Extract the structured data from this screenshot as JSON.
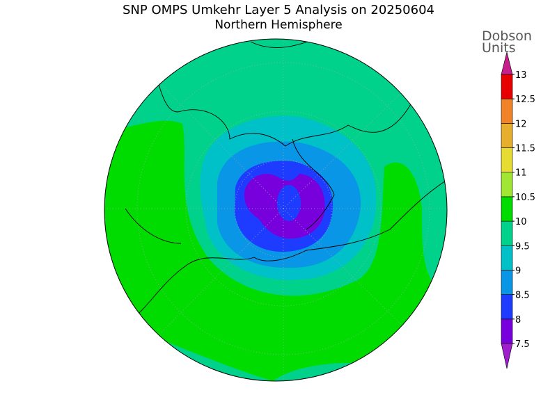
{
  "title": "SNP OMPS Umkehr Layer 5 Analysis on 20250604",
  "subtitle": "Northern Hemisphere",
  "colorbar": {
    "units": [
      "Dobson",
      "Units"
    ],
    "ticks": [
      7.5,
      8,
      8.5,
      9,
      9.5,
      10,
      10.5,
      11,
      11.5,
      12,
      12.5,
      13
    ],
    "colors": [
      "#7800dc",
      "#1e3cff",
      "#0a96e6",
      "#00c0c8",
      "#00d28c",
      "#00dc00",
      "#a0e632",
      "#e6dc32",
      "#e6af2d",
      "#f08228",
      "#e60000"
    ],
    "under_color": "#a01ecc",
    "over_color": "#c81e8c"
  }
}
